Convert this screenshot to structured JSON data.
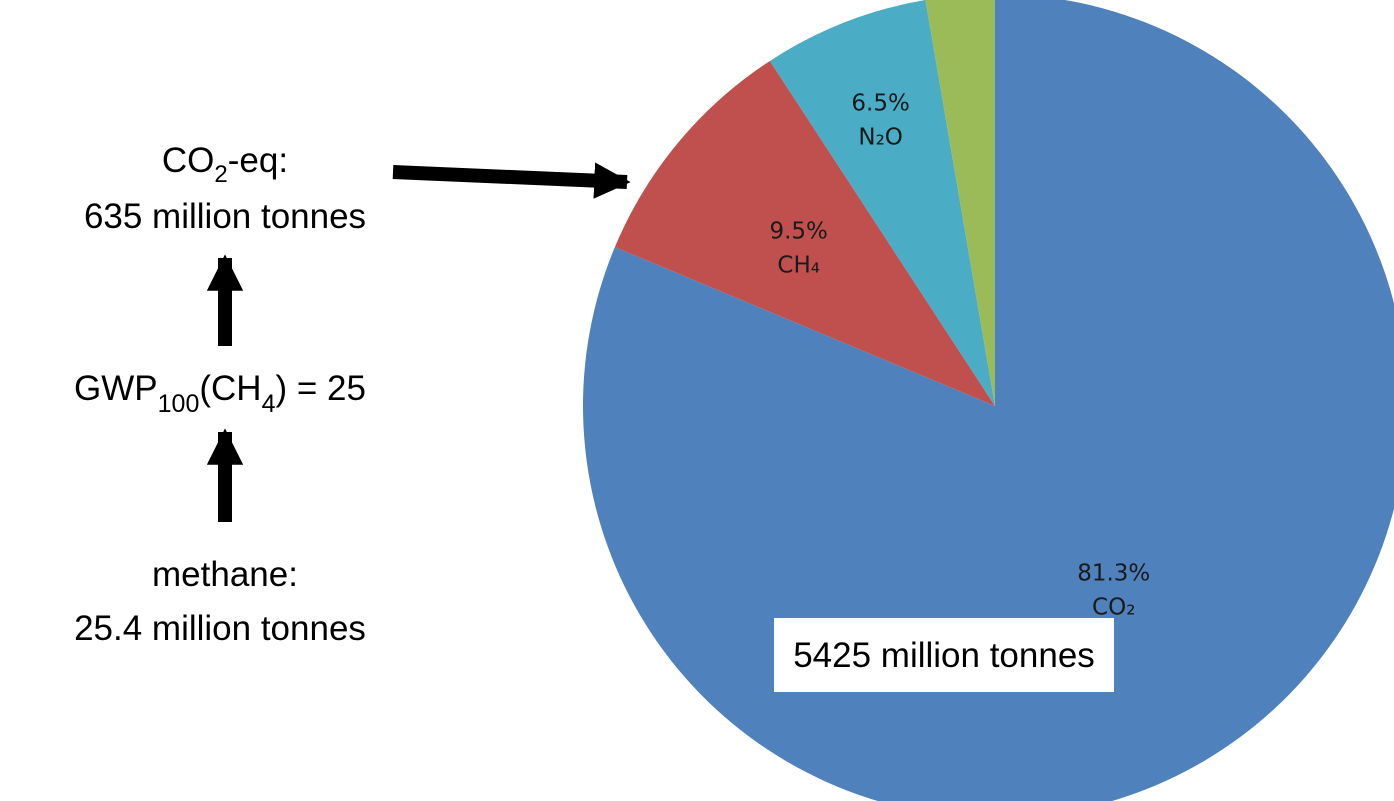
{
  "chart_data": {
    "type": "pie",
    "start_angle_deg": 0,
    "direction": "clockwise",
    "slices": [
      {
        "value": 81.3,
        "pct_label": "81.3%",
        "name_label": "CO₂",
        "color": "#4F81BD"
      },
      {
        "value": 9.5,
        "pct_label": "9.5%",
        "name_label": "CH₄",
        "color": "#C0504D"
      },
      {
        "value": 6.5,
        "pct_label": "6.5%",
        "name_label": "N₂O",
        "color": "#4BACC6"
      },
      {
        "value": 2.7,
        "pct_label": "",
        "name_label": "",
        "color": "#9BBB59"
      }
    ],
    "total_label": "5425 million tonnes"
  },
  "annotations": {
    "co2eq_prefix": "CO",
    "co2eq_sub": "2",
    "co2eq_suffix": "-eq:",
    "co2eq_value": "635 million tonnes",
    "gwp_prefix": "GWP",
    "gwp_sub1": "100",
    "gwp_mid": "(CH",
    "gwp_sub2": "4",
    "gwp_suffix": ") = 25",
    "methane_title": "methane:",
    "methane_value": "25.4 million tonnes"
  }
}
